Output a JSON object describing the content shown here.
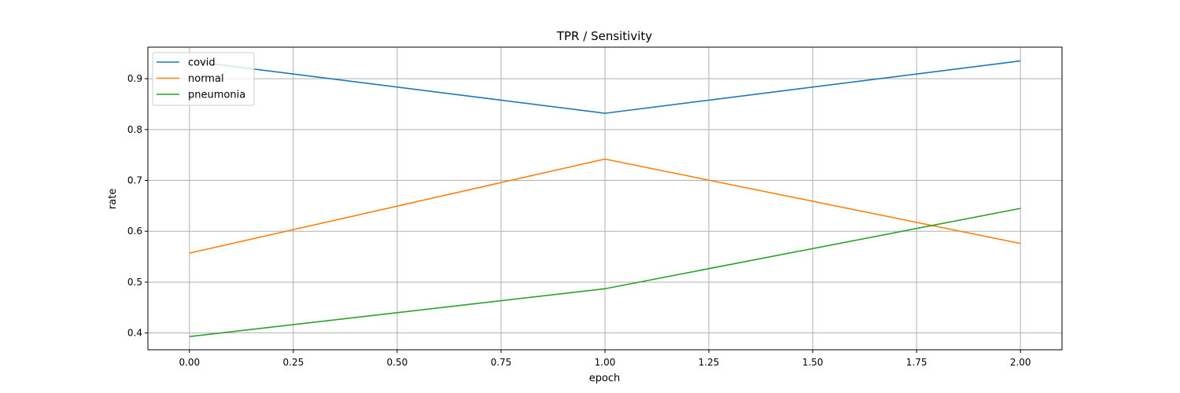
{
  "chart_data": {
    "type": "line",
    "title": "TPR / Sensitivity",
    "xlabel": "epoch",
    "ylabel": "rate",
    "x": [
      0,
      1,
      2
    ],
    "xlim": [
      -0.1,
      2.1
    ],
    "ylim": [
      0.367,
      0.962
    ],
    "xticks": [
      0,
      0.25,
      0.5,
      0.75,
      1,
      1.25,
      1.5,
      1.75,
      2
    ],
    "xtick_labels": [
      "0.00",
      "0.25",
      "0.50",
      "0.75",
      "1.00",
      "1.25",
      "1.50",
      "1.75",
      "2.00"
    ],
    "yticks": [
      0.4,
      0.5,
      0.6,
      0.7,
      0.8,
      0.9
    ],
    "ytick_labels": [
      "0.4",
      "0.5",
      "0.6",
      "0.7",
      "0.8",
      "0.9"
    ],
    "grid": true,
    "legend_position": "top-left",
    "series": [
      {
        "name": "covid",
        "color": "#1f77b4",
        "values": [
          0.935,
          0.832,
          0.935
        ]
      },
      {
        "name": "normal",
        "color": "#ff7f0e",
        "values": [
          0.557,
          0.742,
          0.576
        ]
      },
      {
        "name": "pneumonia",
        "color": "#2ca02c",
        "values": [
          0.393,
          0.487,
          0.645
        ]
      }
    ]
  }
}
